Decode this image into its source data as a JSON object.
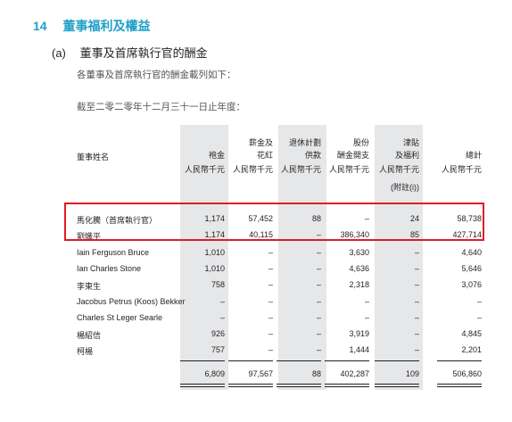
{
  "section": {
    "number": "14",
    "title": "董事福利及權益"
  },
  "subsection": {
    "label": "(a)",
    "title": "董事及首席執行官的酬金"
  },
  "paragraphs": [
    "各董事及首席執行官的酬金載列如下：",
    "截至二零二零年十二月三十一日止年度："
  ],
  "table": {
    "name_header": "董事姓名",
    "columns": [
      {
        "lines": [
          "",
          "",
          "袍金"
        ],
        "unit": "人民幣千元"
      },
      {
        "lines": [
          "",
          "薪金及",
          "花紅"
        ],
        "unit": "人民幣千元"
      },
      {
        "lines": [
          "",
          "退休計劃",
          "供款"
        ],
        "unit": "人民幣千元"
      },
      {
        "lines": [
          "",
          "股份",
          "酬金開支"
        ],
        "unit": "人民幣千元"
      },
      {
        "lines": [
          "",
          "津貼",
          "及福利"
        ],
        "unit": "人民幣千元",
        "note": "(附註(i))"
      },
      {
        "lines": [
          "",
          "",
          "總計"
        ],
        "unit": "人民幣千元"
      }
    ],
    "rows": [
      {
        "name": "馬化騰（首席執行官）",
        "values": [
          "1,174",
          "57,452",
          "88",
          "–",
          "24",
          "58,738"
        ]
      },
      {
        "name": "劉熾平",
        "values": [
          "1,174",
          "40,115",
          "–",
          "386,340",
          "85",
          "427,714"
        ]
      },
      {
        "name": "Iain Ferguson Bruce",
        "values": [
          "1,010",
          "–",
          "–",
          "3,630",
          "–",
          "4,640"
        ]
      },
      {
        "name": "Ian Charles Stone",
        "values": [
          "1,010",
          "–",
          "–",
          "4,636",
          "–",
          "5,646"
        ]
      },
      {
        "name": "李東生",
        "values": [
          "758",
          "–",
          "–",
          "2,318",
          "–",
          "3,076"
        ]
      },
      {
        "name": "Jacobus Petrus (Koos) Bekker",
        "values": [
          "–",
          "–",
          "–",
          "–",
          "–",
          "–"
        ]
      },
      {
        "name": "Charles St Leger Searle",
        "values": [
          "–",
          "–",
          "–",
          "–",
          "–",
          "–"
        ]
      },
      {
        "name": "楊紹信",
        "values": [
          "926",
          "–",
          "–",
          "3,919",
          "–",
          "4,845"
        ]
      },
      {
        "name": "柯楊",
        "values": [
          "757",
          "–",
          "–",
          "1,444",
          "–",
          "2,201"
        ]
      }
    ],
    "totals": [
      "6,809",
      "97,567",
      "88",
      "402,287",
      "109",
      "506,860"
    ]
  },
  "highlight_color": "#e21b22",
  "accent_color": "#1ea0c8"
}
